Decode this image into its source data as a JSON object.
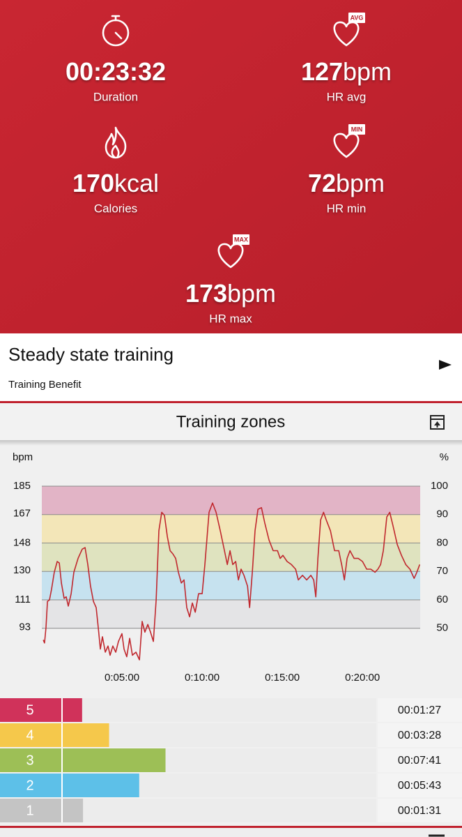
{
  "stats": [
    {
      "value": "00:23:32",
      "unit": "",
      "label": "Duration"
    },
    {
      "value": "127",
      "unit": "bpm",
      "label": "HR avg",
      "badge": "AVG"
    },
    {
      "value": "170",
      "unit": "kcal",
      "label": "Calories"
    },
    {
      "value": "72",
      "unit": "bpm",
      "label": "HR min",
      "badge": "MIN"
    },
    {
      "value": "173",
      "unit": "bpm",
      "label": "HR max",
      "badge": "MAX"
    }
  ],
  "benefit": {
    "title": "Steady state training",
    "subtitle": "Training Benefit"
  },
  "zones_header": {
    "title": "Training zones"
  },
  "chart_data": {
    "type": "line",
    "y_label": "bpm",
    "y2_label": "%",
    "x": [
      0.09,
      0.17,
      0.26,
      0.35,
      0.48,
      0.61,
      0.78,
      0.96,
      1.09,
      1.22,
      1.39,
      1.52,
      1.65,
      1.83,
      2.0,
      2.26,
      2.52,
      2.7,
      2.87,
      3.04,
      3.22,
      3.39,
      3.52,
      3.65,
      3.78,
      3.96,
      4.13,
      4.26,
      4.43,
      4.61,
      4.78,
      5.0,
      5.13,
      5.3,
      5.48,
      5.65,
      5.87,
      6.09,
      6.26,
      6.43,
      6.61,
      6.78,
      6.96,
      7.13,
      7.3,
      7.48,
      7.65,
      7.83,
      8.0,
      8.17,
      8.35,
      8.52,
      8.7,
      8.87,
      9.04,
      9.22,
      9.39,
      9.57,
      9.78,
      10.0,
      10.17,
      10.43,
      10.65,
      10.87,
      11.13,
      11.39,
      11.57,
      11.74,
      11.91,
      12.09,
      12.26,
      12.43,
      12.61,
      12.83,
      12.96,
      13.13,
      13.3,
      13.48,
      13.7,
      13.91,
      14.17,
      14.43,
      14.7,
      14.87,
      15.04,
      15.3,
      15.57,
      15.83,
      16.0,
      16.26,
      16.52,
      16.78,
      16.96,
      17.09,
      17.22,
      17.39,
      17.57,
      17.74,
      18.0,
      18.26,
      18.52,
      18.7,
      18.87,
      19.04,
      19.22,
      19.48,
      19.74,
      20.0,
      20.26,
      20.52,
      20.78,
      20.96,
      21.13,
      21.3,
      21.52,
      21.7,
      21.91,
      22.17,
      22.43,
      22.7,
      22.96,
      23.22,
      23.39,
      23.57
    ],
    "values": [
      85,
      83,
      93,
      110,
      111,
      118,
      129,
      136,
      135,
      122,
      112,
      113,
      107,
      115,
      129,
      138,
      144,
      145,
      134,
      120,
      110,
      106,
      93,
      79,
      87,
      77,
      81,
      75,
      81,
      77,
      84,
      89,
      79,
      74,
      86,
      75,
      77,
      72,
      97,
      90,
      95,
      90,
      84,
      111,
      156,
      168,
      166,
      152,
      143,
      141,
      138,
      129,
      122,
      124,
      106,
      100,
      109,
      103,
      115,
      115,
      134,
      168,
      174,
      168,
      156,
      143,
      134,
      143,
      134,
      136,
      124,
      131,
      127,
      120,
      106,
      129,
      156,
      170,
      171,
      161,
      150,
      143,
      143,
      138,
      140,
      136,
      134,
      131,
      124,
      127,
      124,
      127,
      124,
      113,
      138,
      163,
      168,
      163,
      156,
      143,
      143,
      134,
      124,
      138,
      143,
      138,
      138,
      136,
      131,
      131,
      129,
      131,
      134,
      143,
      165,
      168,
      159,
      147,
      140,
      134,
      131,
      125,
      129,
      134
    ],
    "color": "#c0272d",
    "xlim": [
      0,
      23.6
    ],
    "xticks": [
      {
        "value": 5,
        "label": "0:05:00"
      },
      {
        "value": 10,
        "label": "0:10:00"
      },
      {
        "value": 15,
        "label": "0:15:00"
      },
      {
        "value": 20,
        "label": "0:20:00"
      }
    ],
    "ylim": [
      72,
      185
    ],
    "yticks": [
      93,
      111,
      130,
      148,
      167,
      185
    ],
    "y2lim": [
      38.9,
      100
    ],
    "y2ticks": [
      50,
      60,
      70,
      80,
      90,
      100
    ],
    "zone_colors": [
      "#e4e4e6",
      "#c6e2ef",
      "#dfe3bf",
      "#f3e6b8",
      "#e2b4c6"
    ],
    "grid": true
  },
  "zones": {
    "rows": [
      {
        "zone": "5",
        "time": "00:01:27",
        "color": "#d0325a"
      },
      {
        "zone": "4",
        "time": "00:03:28",
        "color": "#f5c84b"
      },
      {
        "zone": "3",
        "time": "00:07:41",
        "color": "#9dbf56"
      },
      {
        "zone": "2",
        "time": "00:05:43",
        "color": "#5dc0e8"
      },
      {
        "zone": "1",
        "time": "00:01:31",
        "color": "#c4c4c4"
      }
    ]
  }
}
